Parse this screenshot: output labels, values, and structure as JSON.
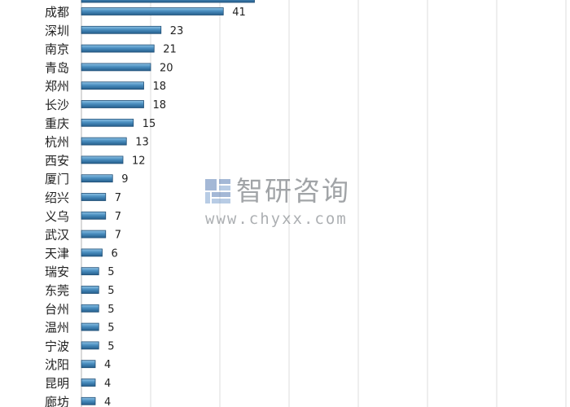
{
  "chart_data": {
    "type": "bar",
    "orientation": "horizontal",
    "categories": [
      "成都",
      "深圳",
      "南京",
      "青岛",
      "郑州",
      "长沙",
      "重庆",
      "杭州",
      "西安",
      "厦门",
      "绍兴",
      "义乌",
      "武汉",
      "天津",
      "瑞安",
      "东莞",
      "台州",
      "温州",
      "宁波",
      "沈阳",
      "昆明",
      "廊坊"
    ],
    "values": [
      41,
      23,
      21,
      20,
      18,
      18,
      15,
      13,
      12,
      9,
      7,
      7,
      7,
      6,
      5,
      5,
      5,
      5,
      5,
      4,
      4,
      4
    ],
    "xlim": [
      0,
      140
    ],
    "grid": true,
    "bar_color": "#4a8ebf",
    "data_labels": true
  },
  "watermark": {
    "title": "智研咨询",
    "url": "www.chyxx.com"
  }
}
